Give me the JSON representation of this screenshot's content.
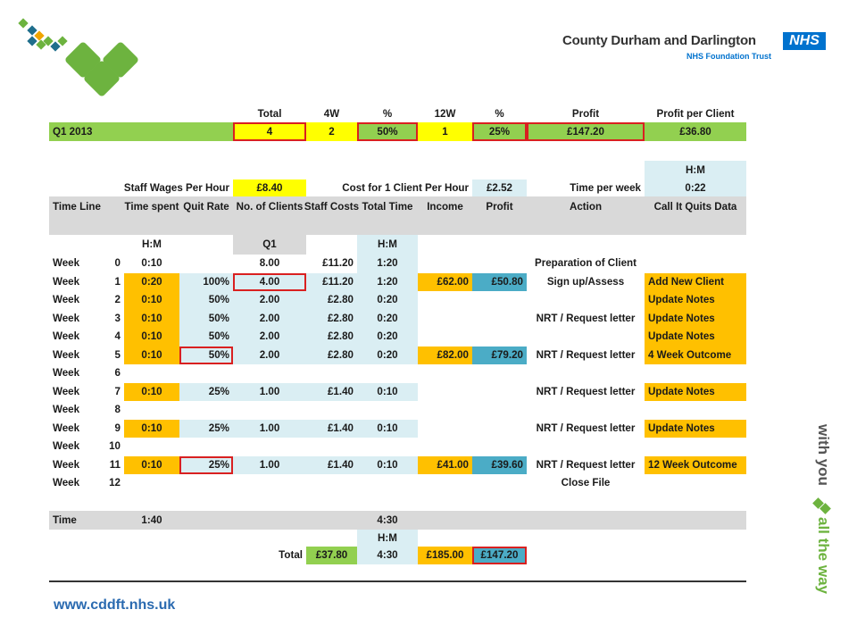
{
  "branding": {
    "org_name": "County Durham and Darlington",
    "nhs": "NHS",
    "org_sub": "NHS Foundation Trust",
    "tagline_a": "with you",
    "tagline_b": "all the way",
    "url": "www.cddft.nhs.uk",
    "colors": {
      "green": "#6DB33F",
      "blue": "#0072CE",
      "teal": "#1F6E8C",
      "orange": "#F0A500"
    }
  },
  "summary": {
    "headers": [
      "Total",
      "4W",
      "%",
      "12W",
      "%",
      "Profit",
      "Profit per Client"
    ],
    "label": "Q1 2013",
    "values": [
      "4",
      "2",
      "50%",
      "1",
      "25%",
      "£147.20",
      "£36.80"
    ]
  },
  "params": {
    "hm_label": "H:M",
    "staff_wages_label": "Staff Wages Per Hour",
    "staff_wages_value": "£8.40",
    "cost_label": "Cost for 1 Client Per Hour",
    "cost_value": "£2.52",
    "time_label": "Time per week",
    "time_value": "0:22"
  },
  "table": {
    "headers": [
      "Time Line",
      "Time spent",
      "Quit Rate",
      "No. of Clients",
      "Staff Costs",
      "Total Time",
      "Income",
      "Profit",
      "Action",
      "Call It Quits Data"
    ],
    "subheaders": {
      "time_spent": "H:M",
      "clients": "Q1",
      "total_time": "H:M"
    },
    "rows": [
      {
        "label": "Week",
        "wk": "0",
        "time": "0:10",
        "rate": "",
        "clients": "8.00",
        "cost": "£11.20",
        "total": "1:20",
        "income": "",
        "profit": "",
        "action": "Preparation of Client",
        "quits": ""
      },
      {
        "label": "Week",
        "wk": "1",
        "time": "0:20",
        "rate": "100%",
        "clients": "4.00",
        "cost": "£11.20",
        "total": "1:20",
        "income": "£62.00",
        "profit": "£50.80",
        "action": "Sign up/Assess",
        "quits": "Add New Client"
      },
      {
        "label": "Week",
        "wk": "2",
        "time": "0:10",
        "rate": "50%",
        "clients": "2.00",
        "cost": "£2.80",
        "total": "0:20",
        "income": "",
        "profit": "",
        "action": "",
        "quits": "Update Notes"
      },
      {
        "label": "Week",
        "wk": "3",
        "time": "0:10",
        "rate": "50%",
        "clients": "2.00",
        "cost": "£2.80",
        "total": "0:20",
        "income": "",
        "profit": "",
        "action": "NRT / Request letter",
        "quits": "Update Notes"
      },
      {
        "label": "Week",
        "wk": "4",
        "time": "0:10",
        "rate": "50%",
        "clients": "2.00",
        "cost": "£2.80",
        "total": "0:20",
        "income": "",
        "profit": "",
        "action": "",
        "quits": "Update Notes"
      },
      {
        "label": "Week",
        "wk": "5",
        "time": "0:10",
        "rate": "50%",
        "clients": "2.00",
        "cost": "£2.80",
        "total": "0:20",
        "income": "£82.00",
        "profit": "£79.20",
        "action": "NRT / Request letter",
        "quits": "4 Week Outcome"
      },
      {
        "label": "Week",
        "wk": "6",
        "time": "",
        "rate": "",
        "clients": "",
        "cost": "",
        "total": "",
        "income": "",
        "profit": "",
        "action": "",
        "quits": ""
      },
      {
        "label": "Week",
        "wk": "7",
        "time": "0:10",
        "rate": "25%",
        "clients": "1.00",
        "cost": "£1.40",
        "total": "0:10",
        "income": "",
        "profit": "",
        "action": "NRT / Request letter",
        "quits": "Update Notes"
      },
      {
        "label": "Week",
        "wk": "8",
        "time": "",
        "rate": "",
        "clients": "",
        "cost": "",
        "total": "",
        "income": "",
        "profit": "",
        "action": "",
        "quits": ""
      },
      {
        "label": "Week",
        "wk": "9",
        "time": "0:10",
        "rate": "25%",
        "clients": "1.00",
        "cost": "£1.40",
        "total": "0:10",
        "income": "",
        "profit": "",
        "action": "NRT / Request letter",
        "quits": "Update Notes"
      },
      {
        "label": "Week",
        "wk": "10",
        "time": "",
        "rate": "",
        "clients": "",
        "cost": "",
        "total": "",
        "income": "",
        "profit": "",
        "action": "",
        "quits": ""
      },
      {
        "label": "Week",
        "wk": "11",
        "time": "0:10",
        "rate": "25%",
        "clients": "1.00",
        "cost": "£1.40",
        "total": "0:10",
        "income": "£41.00",
        "profit": "£39.60",
        "action": "NRT / Request letter",
        "quits": "12 Week Outcome"
      },
      {
        "label": "Week",
        "wk": "12",
        "time": "",
        "rate": "",
        "clients": "",
        "cost": "",
        "total": "",
        "income": "",
        "profit": "",
        "action": "Close File",
        "quits": ""
      }
    ],
    "time_row": {
      "label": "Time",
      "time_spent": "1:40",
      "total_time": "4:30"
    },
    "total_row": {
      "hm": "H:M",
      "label": "Total",
      "staff_costs": "£37.80",
      "total_time": "4:30",
      "income": "£185.00",
      "profit": "£147.20"
    }
  }
}
